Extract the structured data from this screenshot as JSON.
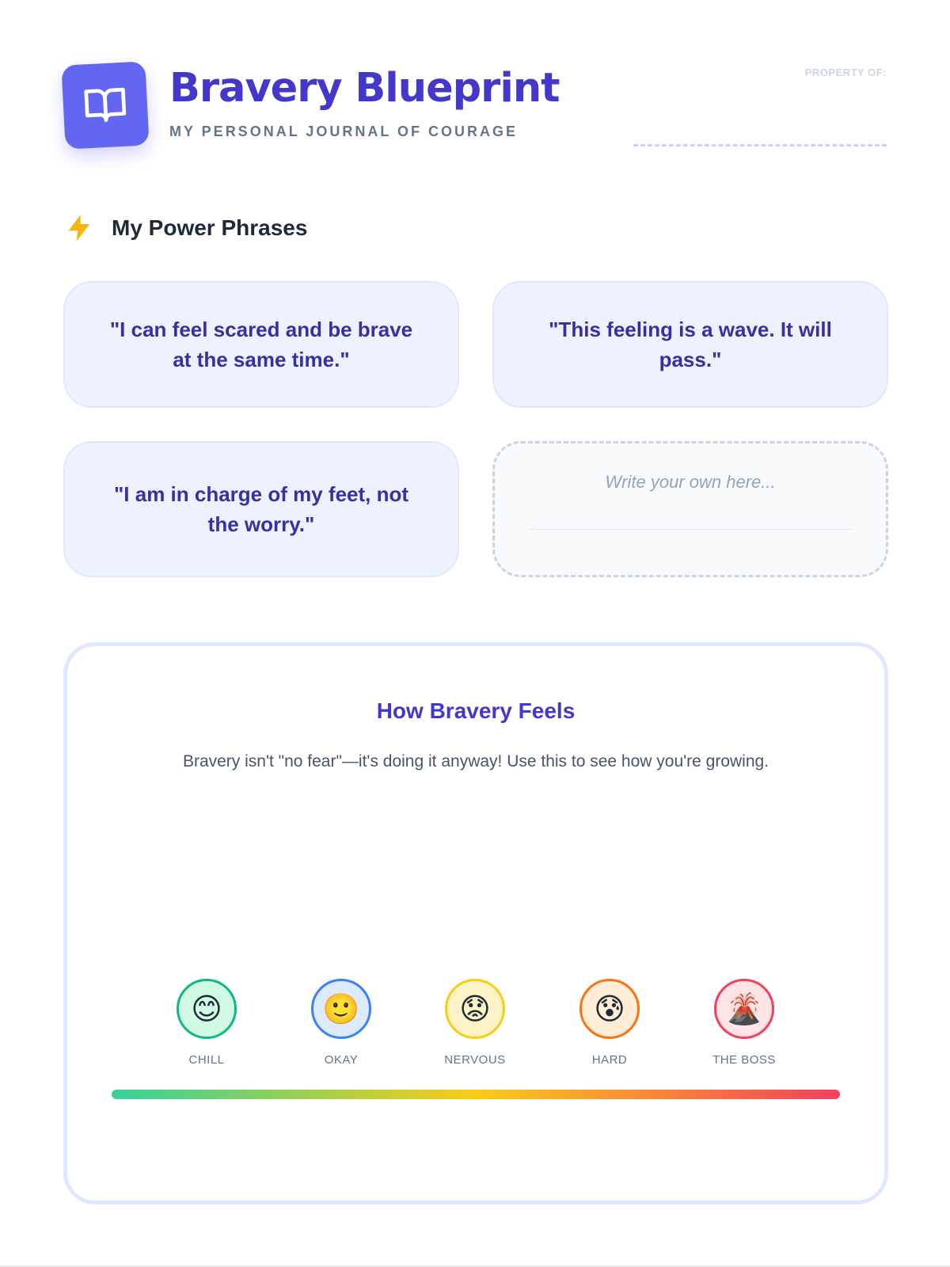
{
  "header": {
    "title": "Bravery Blueprint",
    "subtitle": "MY PERSONAL JOURNAL OF COURAGE",
    "property_label": "PROPERTY OF:",
    "logo_icon": "open-book-icon"
  },
  "power_phrases": {
    "heading": "My Power Phrases",
    "heading_icon": "lightning-bolt-icon",
    "phrases": [
      "\"I can feel scared and be brave at the same time.\"",
      "\"This feeling is a wave. It will pass.\"",
      "\"I am in charge of my feet, not the worry.\""
    ],
    "own_placeholder": "Write your own here..."
  },
  "bravery_scale": {
    "title": "How Bravery Feels",
    "description": "Bravery isn't \"no fear\"—it's doing it anyway! Use this to see how you're growing.",
    "levels": [
      {
        "label": "CHILL",
        "emoji": "😊",
        "icon": "smiling-face-icon",
        "color": "#10b981"
      },
      {
        "label": "OKAY",
        "emoji": "🙂",
        "icon": "slight-smile-icon",
        "color": "#3b82f6"
      },
      {
        "label": "NERVOUS",
        "emoji": "😟",
        "icon": "worried-face-icon",
        "color": "#facc15"
      },
      {
        "label": "HARD",
        "emoji": "😰",
        "icon": "anxious-sweat-face-icon",
        "color": "#f97316"
      },
      {
        "label": "THE BOSS",
        "emoji": "🌋",
        "icon": "volcano-icon",
        "color": "#f43f5e"
      }
    ],
    "gradient_colors": [
      "#34d399",
      "#facc15",
      "#f43f5e"
    ]
  },
  "colors": {
    "accent": "#6366f1",
    "title": "#4338ca",
    "card_bg": "#eef2ff"
  }
}
